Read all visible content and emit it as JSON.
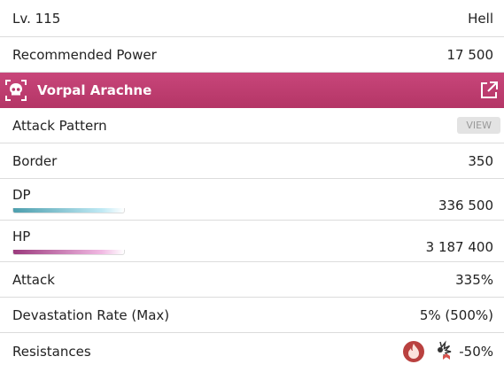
{
  "summary": [
    {
      "label": "Lv. 115",
      "value": "Hell"
    },
    {
      "label": "Recommended Power",
      "value": "17 500"
    }
  ],
  "boss": {
    "name": "Vorpal Arachne"
  },
  "stats": [
    {
      "label": "Attack Pattern",
      "button": "VIEW"
    },
    {
      "label": "Border",
      "value": "350"
    },
    {
      "label": "DP",
      "value": "336 500"
    },
    {
      "label": "HP",
      "value": "3 187 400"
    },
    {
      "label": "Attack",
      "value": "335%"
    },
    {
      "label": "Devastation Rate (Max)",
      "value": "5% (500%)"
    },
    {
      "label": "Resistances",
      "value": "-50%"
    }
  ]
}
